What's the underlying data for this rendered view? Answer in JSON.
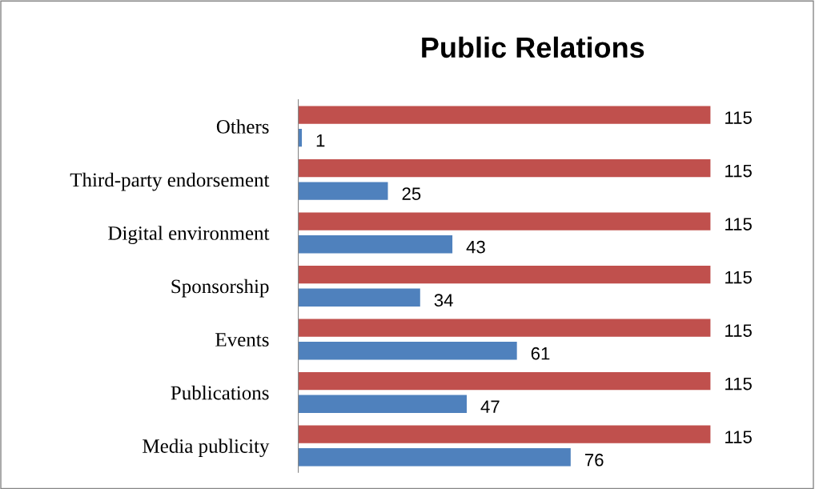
{
  "chart_data": {
    "type": "bar",
    "orientation": "horizontal",
    "title": "Public Relations",
    "categories": [
      "Others",
      "Third-party endorsement",
      "Digital environment",
      "Sponsorship",
      "Events",
      "Publications",
      "Media publicity"
    ],
    "series": [
      {
        "color": "#c0504d",
        "values": [
          115,
          115,
          115,
          115,
          115,
          115,
          115
        ]
      },
      {
        "color": "#4f81bd",
        "values": [
          1,
          25,
          43,
          34,
          61,
          47,
          76
        ]
      }
    ],
    "data_labels": true,
    "tick_labels": "y"
  }
}
